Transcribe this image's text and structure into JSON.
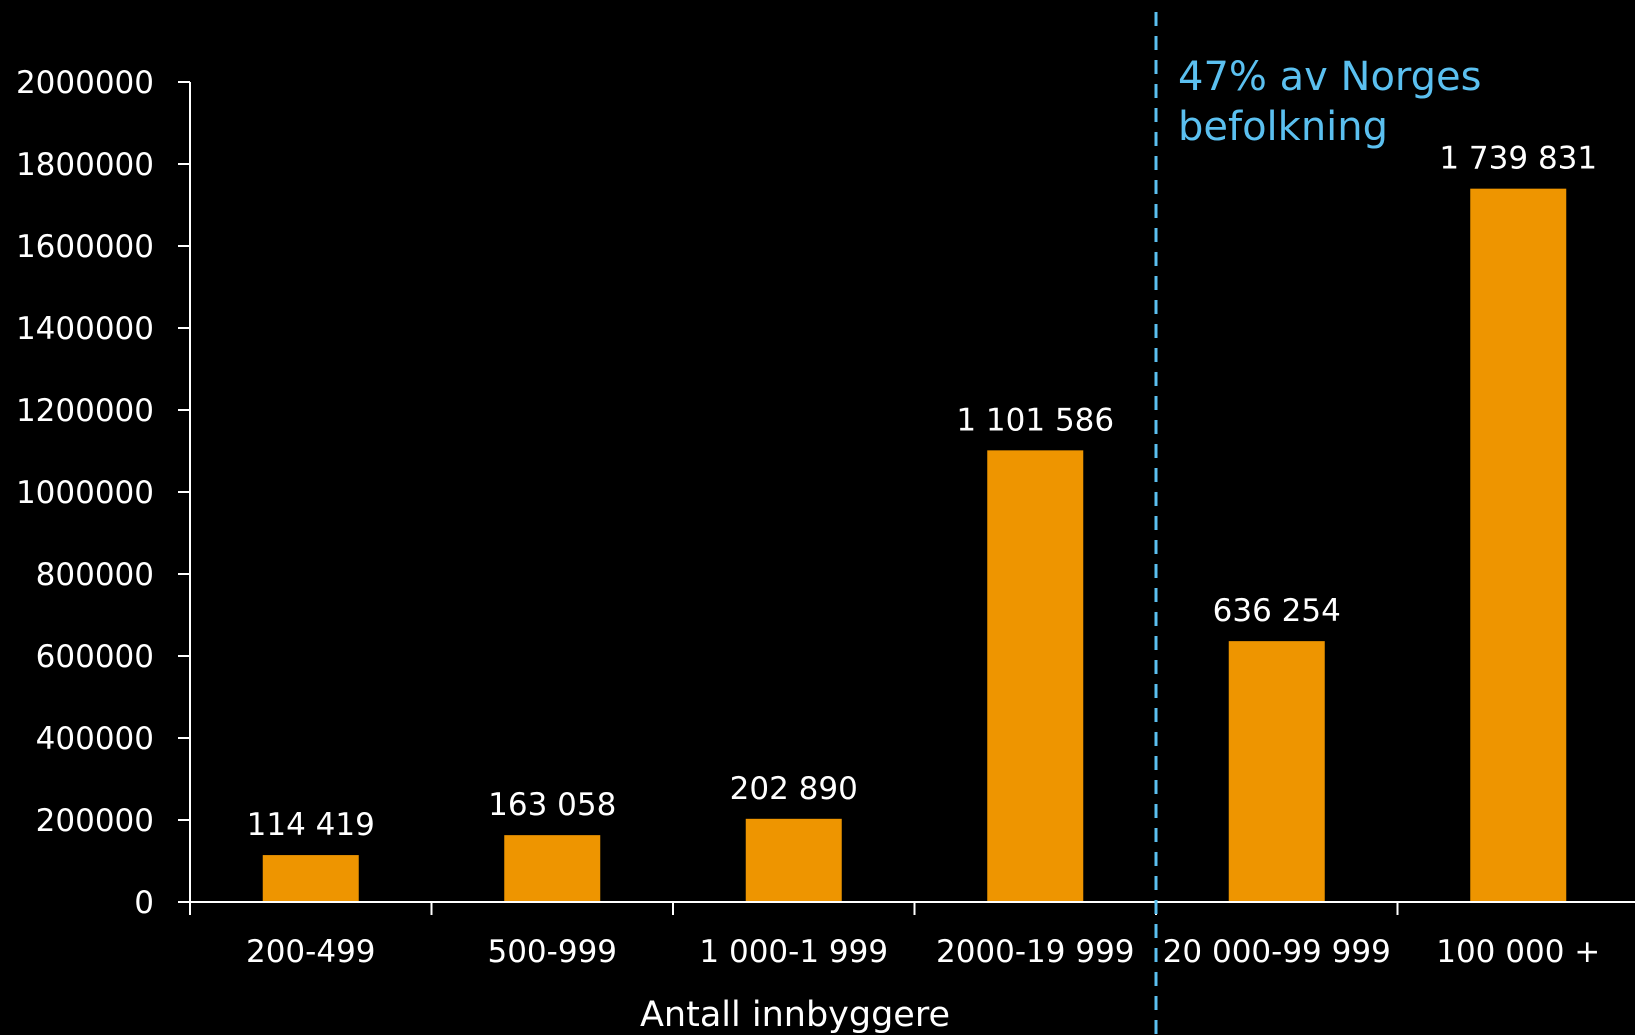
{
  "chart_data": {
    "type": "bar",
    "categories": [
      "200-499",
      "500-999",
      "1 000-1 999",
      "2000-19 999",
      "20 000-99 999",
      "100 000 +"
    ],
    "values": [
      114419,
      163058,
      202890,
      1101586,
      636254,
      1739831
    ],
    "data_labels": [
      "114 419",
      "163 058",
      "202 890",
      "1 101 586",
      "636 254",
      "1 739 831"
    ],
    "ylim": [
      0,
      2000000
    ],
    "yticks": [
      0,
      200000,
      400000,
      600000,
      800000,
      1000000,
      1200000,
      1400000,
      1600000,
      1800000,
      2000000
    ],
    "ytick_labels": [
      "0",
      "200000",
      "400000",
      "600000",
      "800000",
      "1000000",
      "1200000",
      "1400000",
      "1600000",
      "1800000",
      "2000000"
    ],
    "xlabel": "Antall innbyggere",
    "ylabel": "",
    "title": "",
    "grid": false,
    "divider_after_category_index": 3,
    "annotation": {
      "lines": [
        "47% av Norges",
        "befolkning"
      ]
    },
    "colors": {
      "background": "#000000",
      "bar": "#ee9500",
      "axis": "#ffffff",
      "text": "#ffffff",
      "divider": "#5bc0f0",
      "annotation": "#5bc0f0"
    }
  }
}
